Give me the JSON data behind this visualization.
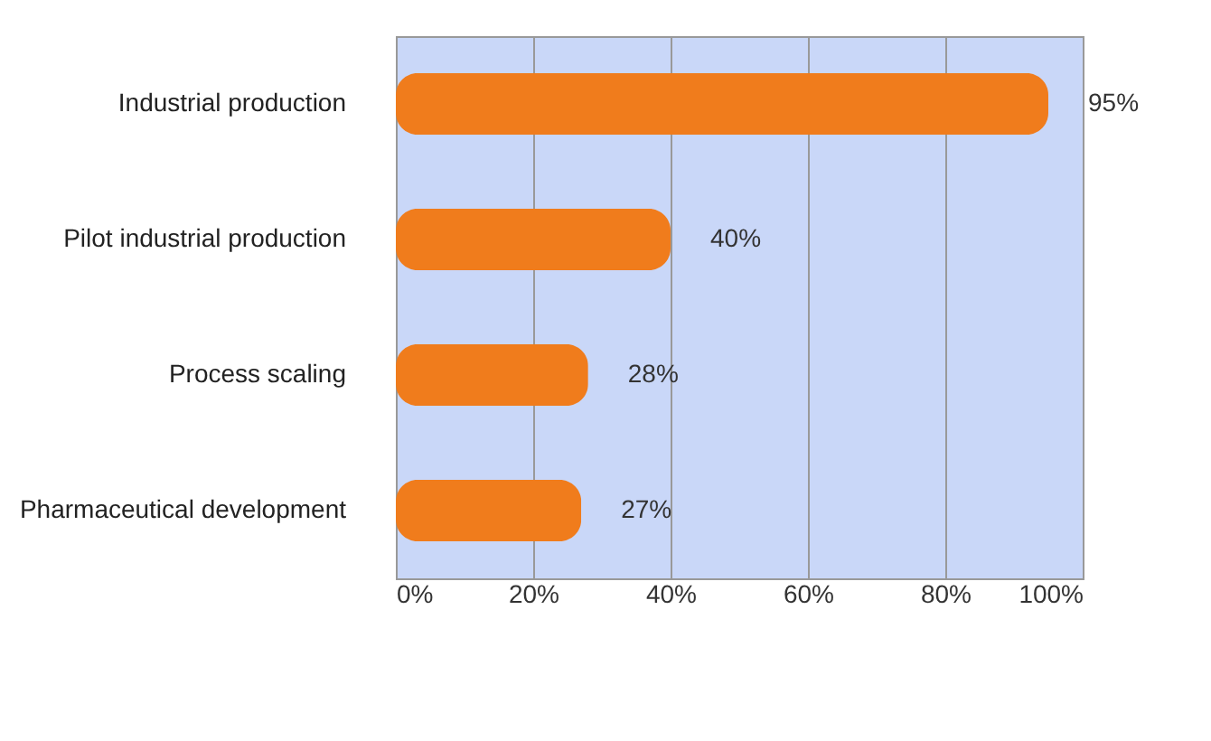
{
  "chart_data": {
    "type": "bar",
    "orientation": "horizontal",
    "categories": [
      "Industrial production",
      "Pilot industrial production",
      "Process scaling",
      "Pharmaceutical development"
    ],
    "values": [
      95,
      40,
      28,
      27
    ],
    "value_labels": [
      "95%",
      "40%",
      "28%",
      "27%"
    ],
    "color": "#f07c1c",
    "xlim": [
      0,
      100
    ],
    "xticks": [
      {
        "value": 0,
        "label": "0%"
      },
      {
        "value": 20,
        "label": "20%"
      },
      {
        "value": 40,
        "label": "40%"
      },
      {
        "value": 60,
        "label": "60%"
      },
      {
        "value": 80,
        "label": "80%"
      },
      {
        "value": 100,
        "label": "100%"
      }
    ],
    "grid": "x"
  }
}
